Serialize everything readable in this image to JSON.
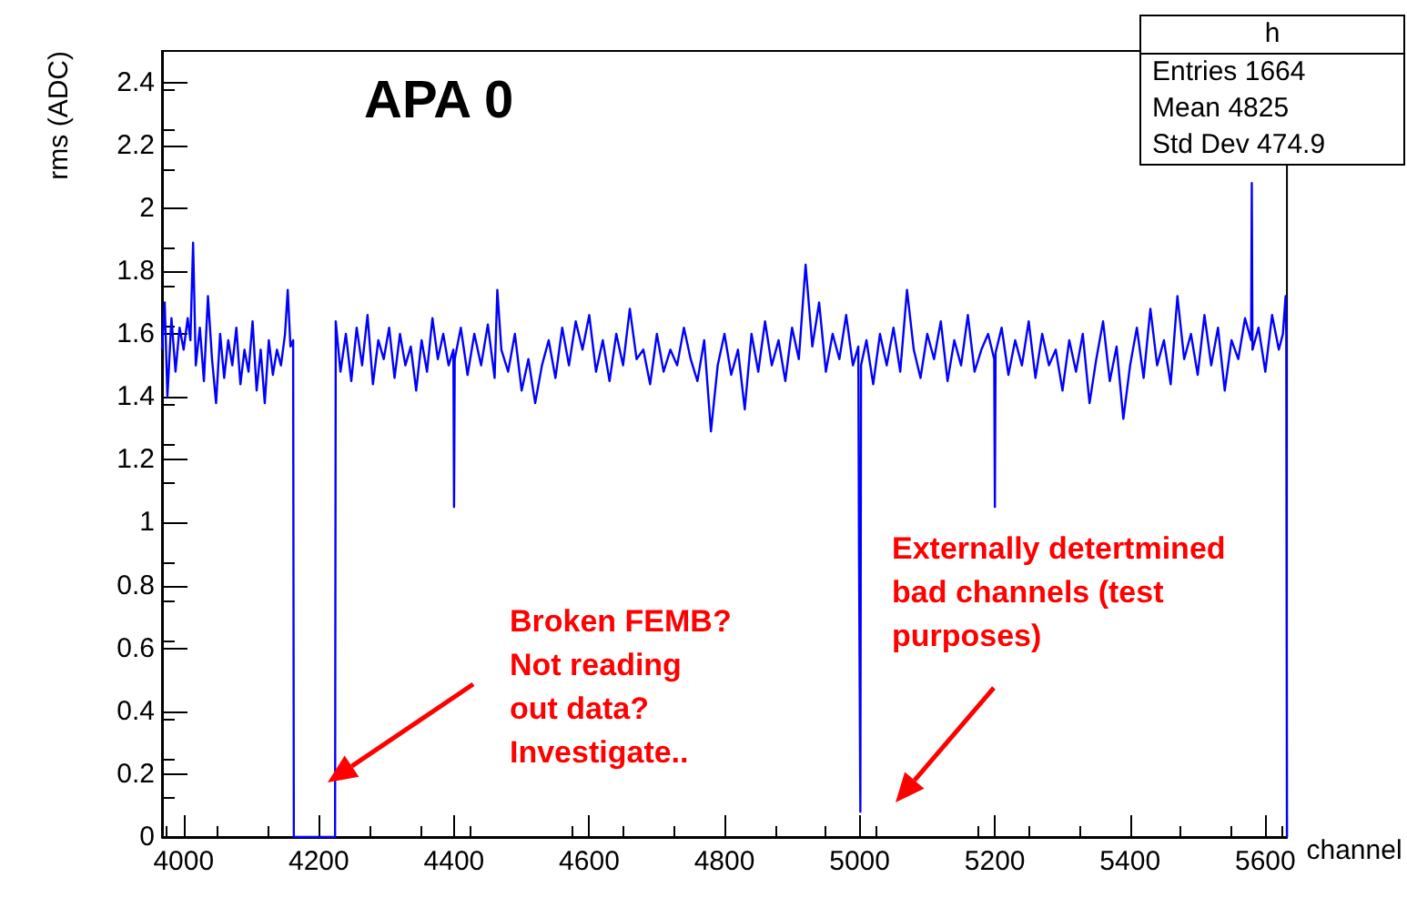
{
  "chart_data": {
    "type": "line",
    "title": "APA 0",
    "xlabel": "channel",
    "ylabel": "rms (ADC)",
    "xlim": [
      3968,
      5632
    ],
    "ylim": [
      0,
      2.5
    ],
    "xticks": [
      4000,
      4200,
      4400,
      4600,
      4800,
      5000,
      5200,
      5400,
      5600
    ],
    "yticks": [
      0,
      0.2,
      0.4,
      0.6,
      0.8,
      1,
      1.2,
      1.4,
      1.6,
      1.8,
      2,
      2.2,
      2.4
    ],
    "grid": false,
    "marker": "none",
    "line_style": "solid",
    "annotations": [
      "h",
      "Entries 1664",
      "Mean 4825",
      "Std Dev 474.9",
      "Broken FEMB? Not reading out data? Investigate..",
      "Externally detertmined bad channels (test purposes)"
    ],
    "x": [
      3968,
      3972,
      3976,
      3982,
      3988,
      3994,
      4000,
      4006,
      4010,
      4014,
      4018,
      4024,
      4030,
      4036,
      4042,
      4048,
      4054,
      4060,
      4066,
      4072,
      4078,
      4084,
      4090,
      4096,
      4102,
      4108,
      4114,
      4120,
      4126,
      4132,
      4138,
      4144,
      4150,
      4154,
      4158,
      4162,
      4163,
      4224,
      4225,
      4232,
      4240,
      4248,
      4256,
      4264,
      4272,
      4280,
      4288,
      4296,
      4304,
      4312,
      4320,
      4328,
      4336,
      4344,
      4352,
      4360,
      4368,
      4376,
      4384,
      4392,
      4399,
      4400,
      4401,
      4410,
      4420,
      4430,
      4440,
      4450,
      4460,
      4464,
      4470,
      4480,
      4490,
      4500,
      4510,
      4520,
      4530,
      4540,
      4550,
      4560,
      4570,
      4580,
      4590,
      4600,
      4610,
      4620,
      4630,
      4640,
      4650,
      4660,
      4670,
      4680,
      4690,
      4700,
      4710,
      4720,
      4730,
      4740,
      4750,
      4760,
      4770,
      4780,
      4790,
      4800,
      4810,
      4820,
      4830,
      4840,
      4850,
      4860,
      4870,
      4880,
      4890,
      4900,
      4910,
      4920,
      4930,
      4940,
      4950,
      4960,
      4970,
      4980,
      4990,
      4998,
      4999,
      5001,
      5002,
      5010,
      5020,
      5030,
      5040,
      5050,
      5060,
      5070,
      5080,
      5090,
      5100,
      5110,
      5120,
      5130,
      5140,
      5150,
      5160,
      5170,
      5180,
      5190,
      5199,
      5200,
      5201,
      5210,
      5220,
      5230,
      5240,
      5250,
      5260,
      5270,
      5280,
      5290,
      5300,
      5310,
      5320,
      5330,
      5340,
      5350,
      5360,
      5370,
      5380,
      5390,
      5400,
      5410,
      5420,
      5430,
      5440,
      5450,
      5460,
      5470,
      5480,
      5490,
      5500,
      5510,
      5520,
      5530,
      5540,
      5550,
      5560,
      5570,
      5579,
      5580,
      5581,
      5590,
      5600,
      5610,
      5620,
      5626,
      5630,
      5631,
      5632
    ],
    "series": [
      {
        "color": "#0000ff",
        "values": [
          1.55,
          1.7,
          1.4,
          1.65,
          1.48,
          1.62,
          1.55,
          1.65,
          1.58,
          1.89,
          1.5,
          1.62,
          1.45,
          1.72,
          1.52,
          1.38,
          1.6,
          1.46,
          1.58,
          1.5,
          1.62,
          1.44,
          1.55,
          1.48,
          1.64,
          1.42,
          1.55,
          1.38,
          1.58,
          1.47,
          1.55,
          1.5,
          1.6,
          1.74,
          1.56,
          1.58,
          0,
          0,
          1.64,
          1.48,
          1.6,
          1.45,
          1.62,
          1.5,
          1.66,
          1.44,
          1.58,
          1.52,
          1.62,
          1.46,
          1.6,
          1.5,
          1.56,
          1.42,
          1.58,
          1.48,
          1.65,
          1.52,
          1.6,
          1.5,
          1.55,
          1.05,
          1.52,
          1.62,
          1.47,
          1.6,
          1.5,
          1.63,
          1.46,
          1.74,
          1.55,
          1.48,
          1.6,
          1.42,
          1.52,
          1.38,
          1.5,
          1.58,
          1.46,
          1.62,
          1.5,
          1.64,
          1.55,
          1.66,
          1.48,
          1.58,
          1.45,
          1.6,
          1.5,
          1.68,
          1.52,
          1.55,
          1.44,
          1.6,
          1.48,
          1.55,
          1.5,
          1.62,
          1.52,
          1.45,
          1.58,
          1.29,
          1.5,
          1.6,
          1.47,
          1.55,
          1.36,
          1.6,
          1.48,
          1.64,
          1.5,
          1.58,
          1.45,
          1.62,
          1.52,
          1.82,
          1.56,
          1.7,
          1.48,
          1.6,
          1.52,
          1.66,
          1.5,
          1.56,
          0.92,
          0.08,
          1.5,
          1.58,
          1.44,
          1.6,
          1.5,
          1.62,
          1.48,
          1.74,
          1.55,
          1.46,
          1.6,
          1.52,
          1.64,
          1.45,
          1.58,
          1.5,
          1.66,
          1.48,
          1.55,
          1.6,
          1.52,
          1.05,
          1.54,
          1.62,
          1.47,
          1.58,
          1.5,
          1.64,
          1.46,
          1.6,
          1.5,
          1.55,
          1.42,
          1.58,
          1.48,
          1.6,
          1.38,
          1.52,
          1.64,
          1.45,
          1.56,
          1.33,
          1.5,
          1.62,
          1.46,
          1.68,
          1.5,
          1.58,
          1.44,
          1.72,
          1.52,
          1.6,
          1.47,
          1.66,
          1.5,
          1.62,
          1.42,
          1.58,
          1.52,
          1.65,
          1.58,
          2.08,
          1.55,
          1.62,
          1.48,
          1.66,
          1.55,
          1.6,
          1.72,
          1.6,
          0
        ]
      }
    ]
  }
}
